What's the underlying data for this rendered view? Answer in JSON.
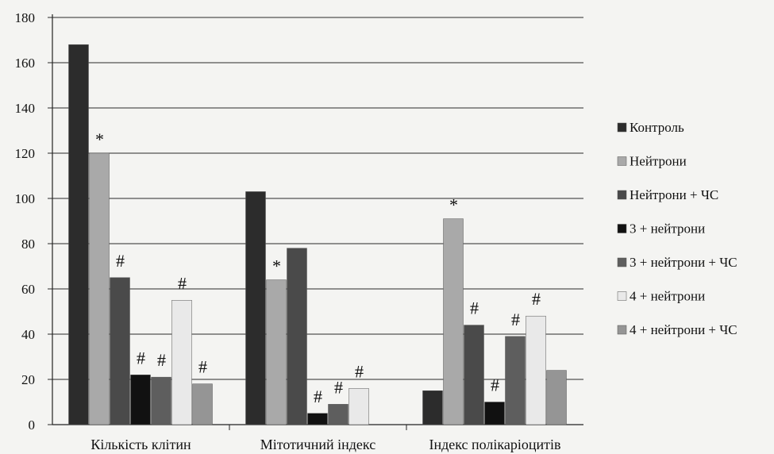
{
  "chart_data": {
    "type": "bar",
    "categories": [
      "Кількість клітин",
      "Мітотичний індекс",
      "Індекс полікаріоцитів"
    ],
    "series": [
      {
        "name": "Контроль",
        "color": "#2c2c2c",
        "values": [
          168,
          103,
          15
        ],
        "markers": [
          "",
          "",
          ""
        ]
      },
      {
        "name": "Нейтрони",
        "color": "#a9a9a9",
        "values": [
          120,
          64,
          91
        ],
        "markers": [
          "*",
          "*",
          "*"
        ]
      },
      {
        "name": "Нейтрони + ЧС",
        "color": "#4a4a4a",
        "values": [
          65,
          78,
          44
        ],
        "markers": [
          "#",
          "",
          "#"
        ]
      },
      {
        "name": "3 + нейтрони",
        "color": "#111111",
        "values": [
          22,
          5,
          10
        ],
        "markers": [
          "#",
          "#",
          "#"
        ]
      },
      {
        "name": "3 + нейтрони + ЧС",
        "color": "#5e5e5e",
        "values": [
          21,
          9,
          39
        ],
        "markers": [
          "#",
          "#",
          "#"
        ]
      },
      {
        "name": "4 + нейтрони",
        "color": "#e9e9e9",
        "values": [
          55,
          16,
          48
        ],
        "markers": [
          "#",
          "#",
          "#"
        ]
      },
      {
        "name": "4 + нейтрони + ЧС",
        "color": "#959595",
        "values": [
          18,
          0,
          24
        ],
        "markers": [
          "#",
          "",
          ""
        ]
      }
    ],
    "y_ticks": [
      "0",
      "20",
      "40",
      "60",
      "80",
      "100",
      "120",
      "140",
      "160",
      "180"
    ],
    "ylim": [
      0,
      180
    ],
    "grid": true,
    "legend_position": "right"
  }
}
